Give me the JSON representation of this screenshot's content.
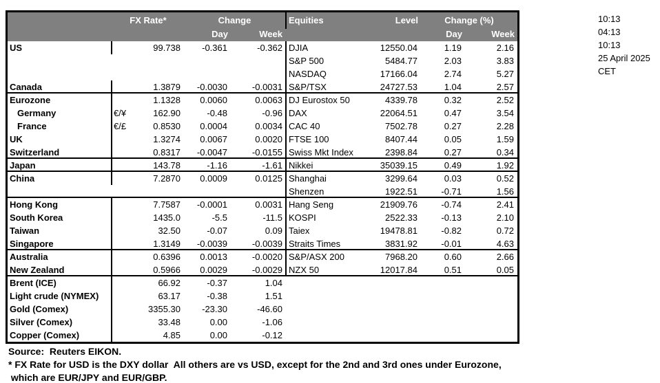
{
  "header": {
    "fx_rate": "FX Rate*",
    "change": "Change",
    "day": "Day",
    "week": "Week",
    "equities": "Equities",
    "level": "Level",
    "change_pct": "Change (%)"
  },
  "table": {
    "rows": [
      {
        "label": "US",
        "indent": false,
        "pair": "",
        "rate": "99.738",
        "day": "-0.361",
        "week": "-0.362",
        "equity": "DJIA",
        "level": "12550.04",
        "dayp": "1.19",
        "weekp": "2.16",
        "end": false
      },
      {
        "label": "",
        "indent": false,
        "pair": "",
        "rate": "",
        "day": "",
        "week": "",
        "equity": "S&P 500",
        "level": "5484.77",
        "dayp": "2.03",
        "weekp": "3.83",
        "end": false
      },
      {
        "label": "",
        "indent": false,
        "pair": "",
        "rate": "",
        "day": "",
        "week": "",
        "equity": "NASDAQ",
        "level": "17166.04",
        "dayp": "2.74",
        "weekp": "5.27",
        "end": false
      },
      {
        "label": "Canada",
        "indent": false,
        "pair": "",
        "rate": "1.3879",
        "day": "-0.0030",
        "week": "-0.0031",
        "equity": "S&P/TSX",
        "level": "24727.53",
        "dayp": "1.04",
        "weekp": "2.57",
        "end": true
      },
      {
        "label": "Eurozone",
        "indent": false,
        "pair": "",
        "rate": "1.1328",
        "day": "0.0060",
        "week": "0.0063",
        "equity": "DJ Eurostox 50",
        "level": "4339.78",
        "dayp": "0.32",
        "weekp": "2.52",
        "end": false
      },
      {
        "label": "Germany",
        "indent": true,
        "pair": "€/¥",
        "rate": "162.90",
        "day": "-0.48",
        "week": "-0.96",
        "equity": "DAX",
        "level": "22064.51",
        "dayp": "0.47",
        "weekp": "3.54",
        "end": false
      },
      {
        "label": "France",
        "indent": true,
        "pair": "€/£",
        "rate": "0.8530",
        "day": "0.0004",
        "week": "0.0034",
        "equity": "CAC 40",
        "level": "7502.78",
        "dayp": "0.27",
        "weekp": "2.28",
        "end": false
      },
      {
        "label": "UK",
        "indent": false,
        "pair": "",
        "rate": "1.3274",
        "day": "0.0067",
        "week": "0.0020",
        "equity": "FTSE 100",
        "level": "8407.44",
        "dayp": "0.05",
        "weekp": "1.59",
        "end": false
      },
      {
        "label": "Switzerland",
        "indent": false,
        "pair": "",
        "rate": "0.8317",
        "day": "-0.0047",
        "week": "-0.0155",
        "equity": "Swiss Mkt Index",
        "level": "2398.84",
        "dayp": "0.27",
        "weekp": "0.34",
        "end": true
      },
      {
        "label": "Japan",
        "indent": false,
        "pair": "",
        "rate": "143.78",
        "day": "-1.16",
        "week": "-1.61",
        "equity": "Nikkei",
        "level": "35039.15",
        "dayp": "0.49",
        "weekp": "1.92",
        "end": true
      },
      {
        "label": "China",
        "indent": false,
        "pair": "",
        "rate": "7.2870",
        "day": "0.0009",
        "week": "0.0125",
        "equity": "Shanghai",
        "level": "3299.64",
        "dayp": "0.03",
        "weekp": "0.52",
        "end": false
      },
      {
        "label": "",
        "indent": false,
        "pair": "",
        "rate": "",
        "day": "",
        "week": "",
        "equity": "Shenzen",
        "level": "1922.51",
        "dayp": "-0.71",
        "weekp": "1.56",
        "end": true
      },
      {
        "label": "Hong Kong",
        "indent": false,
        "pair": "",
        "rate": "7.7587",
        "day": "-0.0001",
        "week": "0.0031",
        "equity": "Hang Seng",
        "level": "21909.76",
        "dayp": "-0.74",
        "weekp": "2.41",
        "end": false
      },
      {
        "label": "South Korea",
        "indent": false,
        "pair": "",
        "rate": "1435.0",
        "day": "-5.5",
        "week": "-11.5",
        "equity": "KOSPI",
        "level": "2522.33",
        "dayp": "-0.13",
        "weekp": "2.10",
        "end": false
      },
      {
        "label": "Taiwan",
        "indent": false,
        "pair": "",
        "rate": "32.50",
        "day": "-0.07",
        "week": "0.09",
        "equity": "Taiex",
        "level": "19478.81",
        "dayp": "-0.82",
        "weekp": "0.72",
        "end": false
      },
      {
        "label": "Singapore",
        "indent": false,
        "pair": "",
        "rate": "1.3149",
        "day": "-0.0039",
        "week": "-0.0039",
        "equity": "Straits Times",
        "level": "3831.92",
        "dayp": "-0.01",
        "weekp": "4.63",
        "end": true
      },
      {
        "label": "Australia",
        "indent": false,
        "pair": "",
        "rate": "0.6396",
        "day": "0.0013",
        "week": "-0.0020",
        "equity": "S&P/ASX  200",
        "level": "7968.20",
        "dayp": "0.60",
        "weekp": "2.66",
        "end": false
      },
      {
        "label": "New Zealand",
        "indent": false,
        "pair": "",
        "rate": "0.5966",
        "day": "0.0029",
        "week": "-0.0029",
        "equity": "NZX 50",
        "level": "12017.84",
        "dayp": "0.51",
        "weekp": "0.05",
        "end": true
      },
      {
        "label": "Brent (ICE)",
        "indent": false,
        "pair": "",
        "rate": "66.92",
        "day": "-0.37",
        "week": "1.04",
        "equity": "",
        "level": "",
        "dayp": "",
        "weekp": "",
        "end": false
      },
      {
        "label": "Light crude (NYMEX)",
        "indent": false,
        "pair": "",
        "rate": "63.17",
        "day": "-0.38",
        "week": "1.51",
        "equity": "",
        "level": "",
        "dayp": "",
        "weekp": "",
        "end": false
      },
      {
        "label": "Gold (Comex)",
        "indent": false,
        "pair": "",
        "rate": "3355.30",
        "day": "-23.30",
        "week": "-46.60",
        "equity": "",
        "level": "",
        "dayp": "",
        "weekp": "",
        "end": false
      },
      {
        "label": "Silver (Comex)",
        "indent": false,
        "pair": "",
        "rate": "33.48",
        "day": "0.00",
        "week": "-1.06",
        "equity": "",
        "level": "",
        "dayp": "",
        "weekp": "",
        "end": false
      },
      {
        "label": "Copper (Comex)",
        "indent": false,
        "pair": "",
        "rate": "4.85",
        "day": "0.00",
        "week": "-0.12",
        "equity": "",
        "level": "",
        "dayp": "",
        "weekp": "",
        "end": false
      }
    ]
  },
  "clock": [
    "10:13",
    "04:13",
    "10:13",
    "25 April 2025",
    "CET"
  ],
  "footer": {
    "source": "Source:  Reuters EIKON.",
    "note1": "* FX Rate for USD is the DXY dollar  All others are vs USD, except for the 2nd and 3rd ones under Eurozone,",
    "note2": " which are EUR/JPY and EUR/GBP."
  },
  "colors": {
    "header_bg": "#808080",
    "header_text": "#ffffff",
    "border": "#000000"
  }
}
